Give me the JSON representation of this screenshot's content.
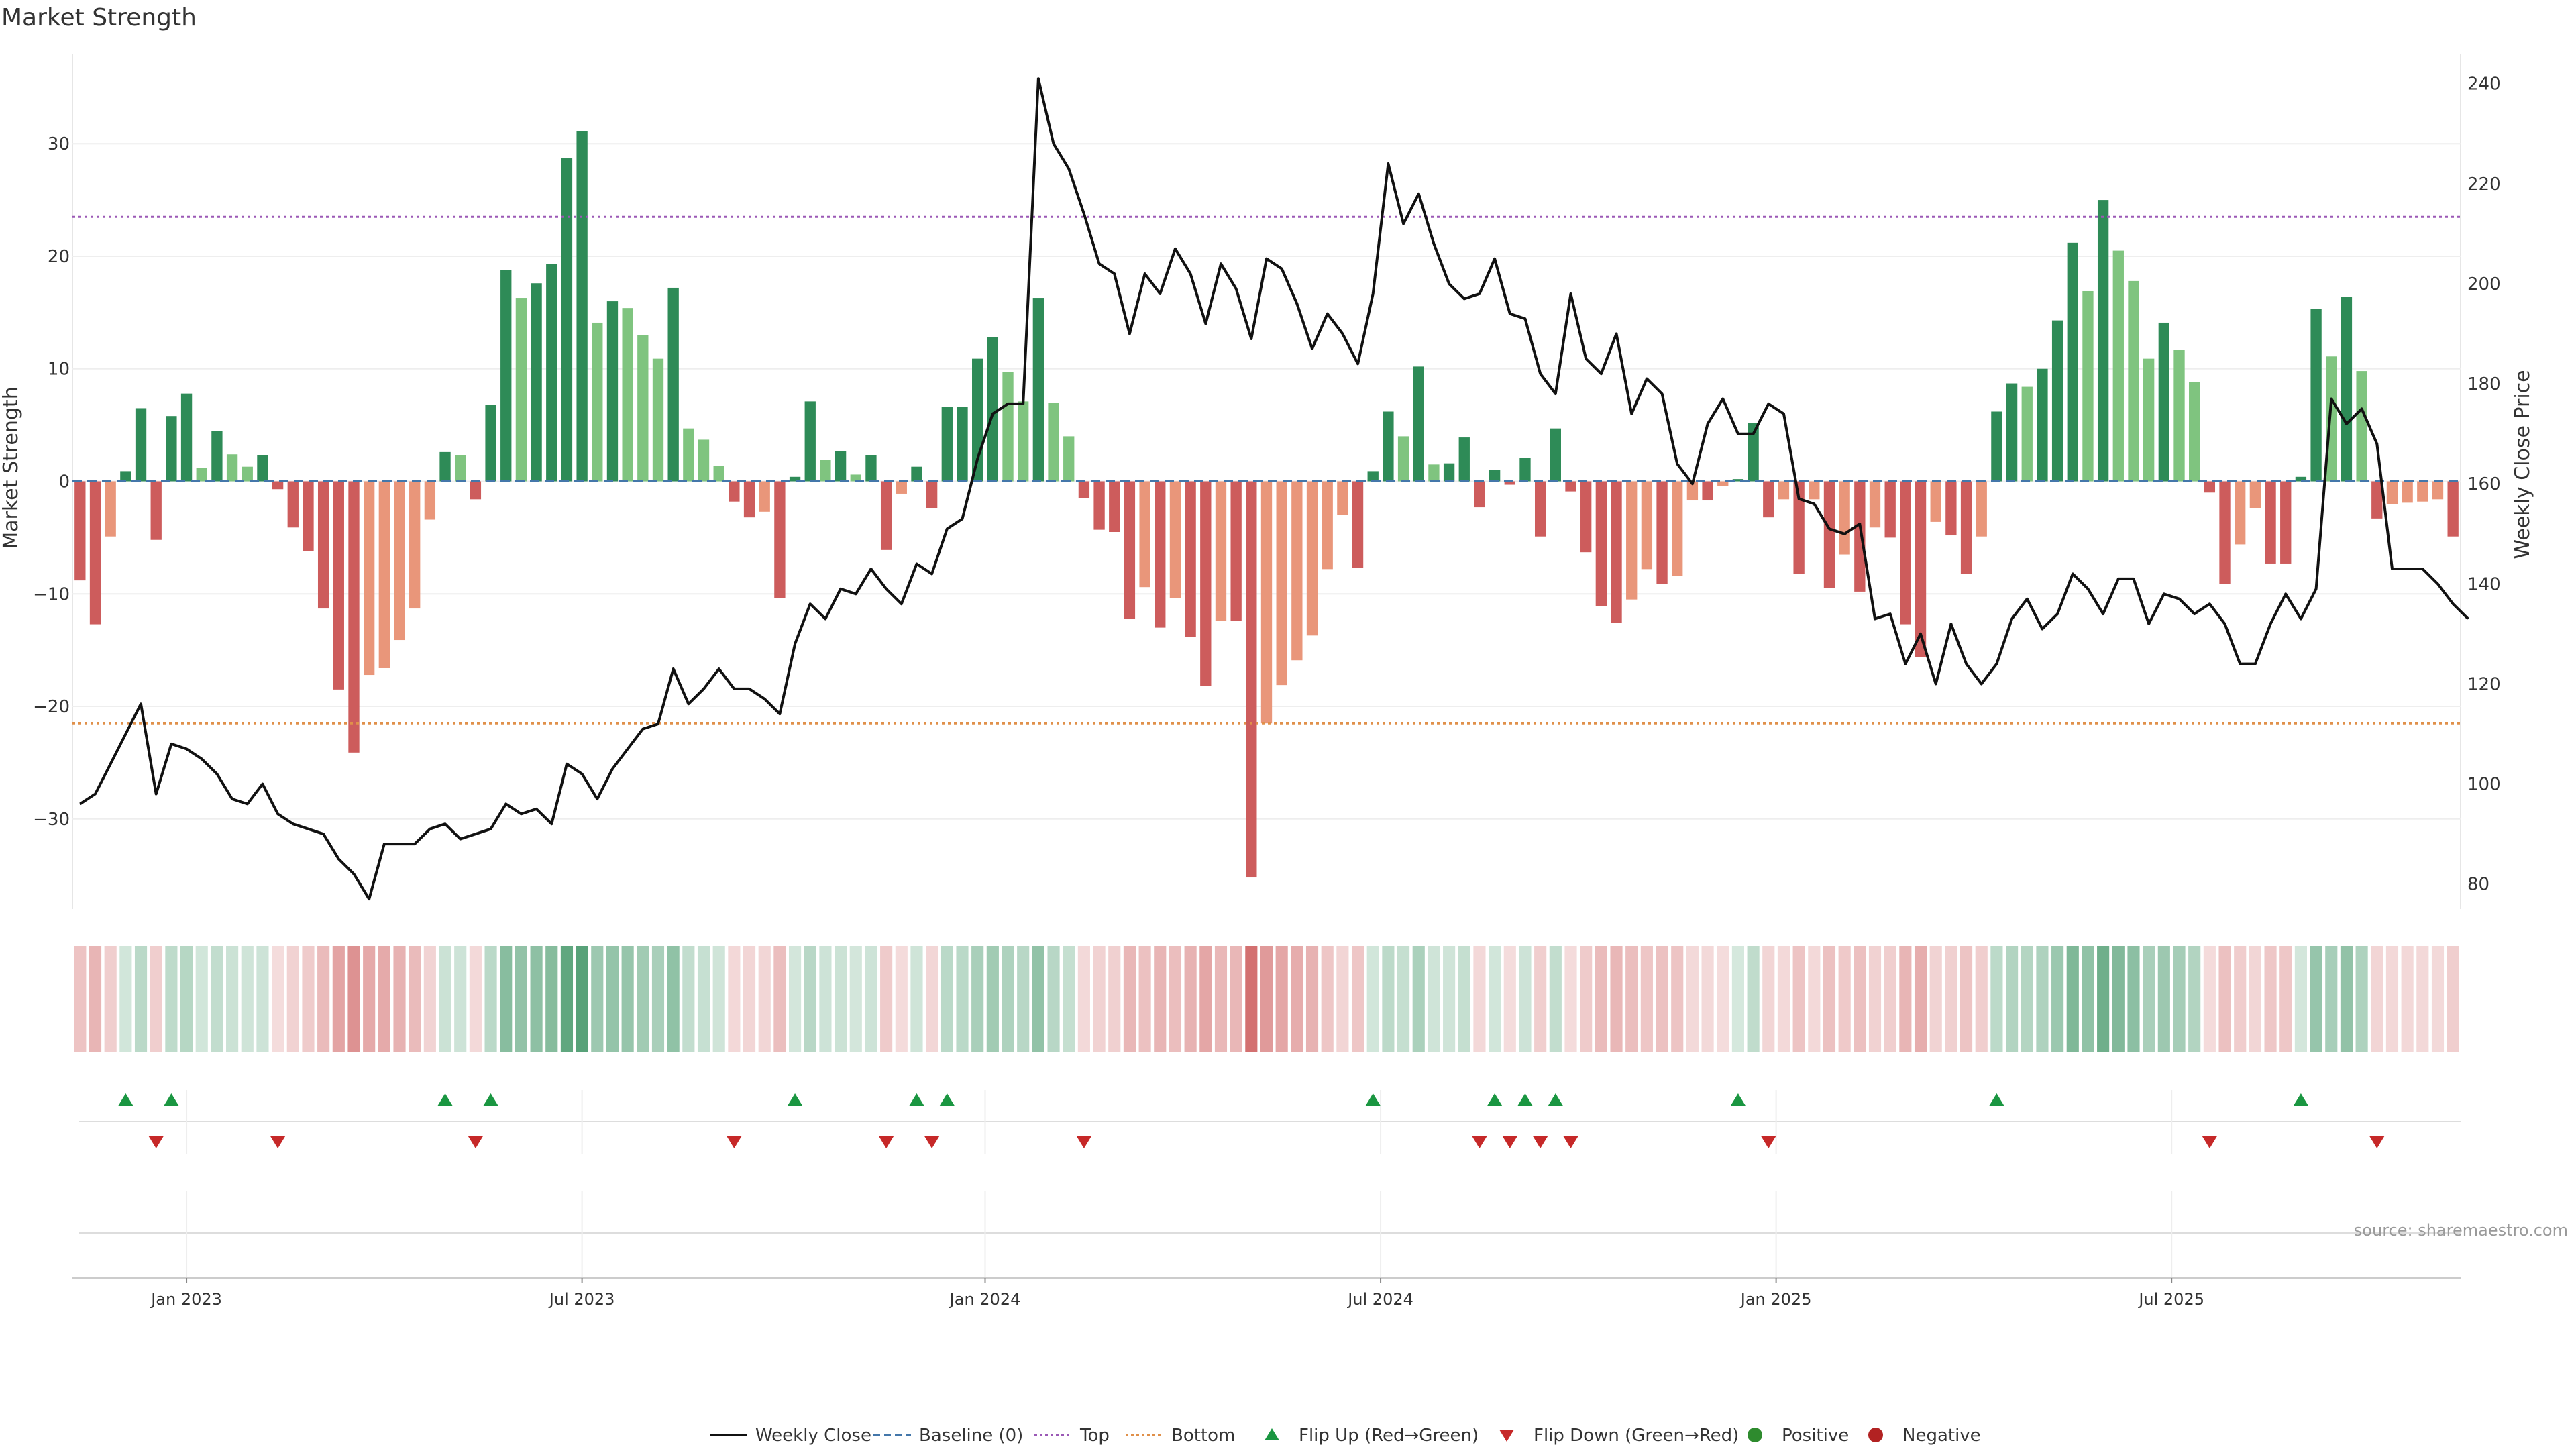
{
  "title": "Market Strength",
  "source": "source: sharemaestro.com",
  "colors": {
    "pos_strong": "#2e8b57",
    "pos_light": "#7fc47f",
    "neg_strong": "#cd5c5c",
    "neg_light": "#e9967a",
    "price_line": "#111111",
    "baseline": "#4477aa",
    "top": "#9b59b6",
    "bottom": "#e0904a",
    "flip_up": "#1a9641",
    "flip_down": "#c62828",
    "positive": "#2e8b2e",
    "negative": "#b22222"
  },
  "chart_data": {
    "type": "bar+line",
    "title": "Market Strength",
    "ylabel_left": "Market Strength",
    "ylabel_right": "Weekly Close Price",
    "y_left_range": [
      -38,
      38
    ],
    "y_left_ticks": [
      "30",
      "20",
      "10",
      "0",
      "−10",
      "−20",
      "−30"
    ],
    "y_left_tick_values": [
      30,
      20,
      10,
      0,
      -10,
      -20,
      -30
    ],
    "y_right_range": [
      75,
      246
    ],
    "y_right_ticks": [
      "240",
      "220",
      "200",
      "180",
      "160",
      "140",
      "120",
      "100",
      "80"
    ],
    "y_right_tick_values": [
      240,
      220,
      200,
      180,
      160,
      140,
      120,
      100,
      80
    ],
    "x_ticks": [
      "Jan 2023",
      "Jul 2023",
      "Jan 2024",
      "Jul 2024",
      "Jan 2025",
      "Jul 2025"
    ],
    "x_tick_week_index": [
      7,
      33,
      59.5,
      85.5,
      111.5,
      137.5
    ],
    "top_threshold": 23.5,
    "bottom_threshold": -21.5,
    "strength": [
      -8.8,
      -12.7,
      -4.9,
      0.9,
      6.5,
      -5.2,
      5.8,
      7.8,
      1.2,
      4.5,
      2.4,
      1.3,
      2.3,
      -0.7,
      -4.1,
      -6.2,
      -11.3,
      -18.5,
      -24.1,
      -17.2,
      -16.6,
      -14.1,
      -11.3,
      -3.4,
      2.6,
      2.3,
      -1.6,
      6.8,
      18.8,
      16.3,
      17.6,
      19.3,
      28.7,
      31.1,
      14.1,
      16.0,
      15.4,
      13.0,
      10.9,
      17.2,
      4.7,
      3.7,
      1.4,
      -1.8,
      -3.2,
      -2.7,
      -10.4,
      0.4,
      7.1,
      1.9,
      2.7,
      0.6,
      2.3,
      -6.1,
      -1.1,
      1.3,
      -2.4,
      6.6,
      6.6,
      10.9,
      12.8,
      9.7,
      7.1,
      16.3,
      7.0,
      4.0,
      -1.5,
      -4.3,
      -4.5,
      -12.2,
      -9.4,
      -13.0,
      -10.4,
      -13.8,
      -18.2,
      -12.4,
      -12.4,
      -35.2,
      -21.5,
      -18.1,
      -15.9,
      -13.7,
      -7.8,
      -3.0,
      -7.7,
      0.9,
      6.2,
      4.0,
      10.2,
      1.5,
      1.6,
      3.9,
      -2.3,
      1.0,
      -0.3,
      2.1,
      -4.9,
      4.7,
      -0.9,
      -6.3,
      -11.1,
      -12.6,
      -10.5,
      -7.8,
      -9.1,
      -8.4,
      -1.7,
      -1.7,
      -0.4,
      0.2,
      5.2,
      -3.2,
      -1.6,
      -8.2,
      -1.6,
      -9.5,
      -6.5,
      -9.8,
      -4.1,
      -5.0,
      -12.7,
      -15.6,
      -3.6,
      -4.8,
      -8.2,
      -4.9,
      6.2,
      8.7,
      8.4,
      10.0,
      14.3,
      21.2,
      16.9,
      25.0,
      20.5,
      17.8,
      10.9,
      14.1,
      11.7,
      8.8,
      -1.0,
      -9.1,
      -5.6,
      -2.4,
      -7.3,
      -7.3,
      0.4,
      15.3,
      11.1,
      16.4,
      9.8,
      -3.3,
      -2.0,
      -1.9,
      -1.8,
      -1.6,
      -4.9
    ],
    "weekly_close": [
      96,
      98,
      104,
      110,
      116,
      98,
      108,
      107,
      105,
      102,
      97,
      96,
      100,
      94,
      92,
      91,
      90,
      85,
      82,
      77,
      88,
      88,
      88,
      91,
      92,
      89,
      90,
      91,
      96,
      94,
      95,
      92,
      104,
      102,
      97,
      103,
      107,
      111,
      112,
      123,
      116,
      119,
      123,
      119,
      119,
      117,
      114,
      128,
      136,
      133,
      139,
      138,
      143,
      139,
      136,
      144,
      142,
      151,
      153,
      165,
      174,
      176,
      176,
      241,
      228,
      223,
      214,
      204,
      202,
      190,
      202,
      198,
      207,
      202,
      192,
      204,
      199,
      189,
      205,
      203,
      196,
      187,
      194,
      190,
      184,
      198,
      224,
      212,
      218,
      208,
      200,
      197,
      198,
      205,
      194,
      193,
      182,
      178,
      198,
      185,
      182,
      190,
      174,
      181,
      178,
      164,
      160,
      172,
      177,
      170,
      170,
      176,
      174,
      157,
      156,
      151,
      150,
      152,
      133,
      134,
      124,
      130,
      120,
      132,
      124,
      120,
      124,
      133,
      137,
      131,
      134,
      142,
      139,
      134,
      141,
      141,
      132,
      138,
      137,
      134,
      136,
      132,
      124,
      124,
      132,
      138,
      133,
      139,
      177,
      172,
      175,
      168,
      143,
      143,
      143,
      140,
      136,
      133
    ],
    "flips_up": [
      3,
      6,
      24,
      27,
      47,
      55,
      57,
      85,
      93,
      95,
      97,
      109,
      126,
      146
    ],
    "flips_down": [
      5,
      13,
      26,
      43,
      53,
      56,
      66,
      92,
      94,
      96,
      98,
      111,
      140,
      151
    ],
    "legend": [
      "Weekly Close",
      "Baseline (0)",
      "Top",
      "Bottom",
      "Flip Up (Red→Green)",
      "Flip Down (Green→Red)",
      "Positive",
      "Negative"
    ]
  }
}
